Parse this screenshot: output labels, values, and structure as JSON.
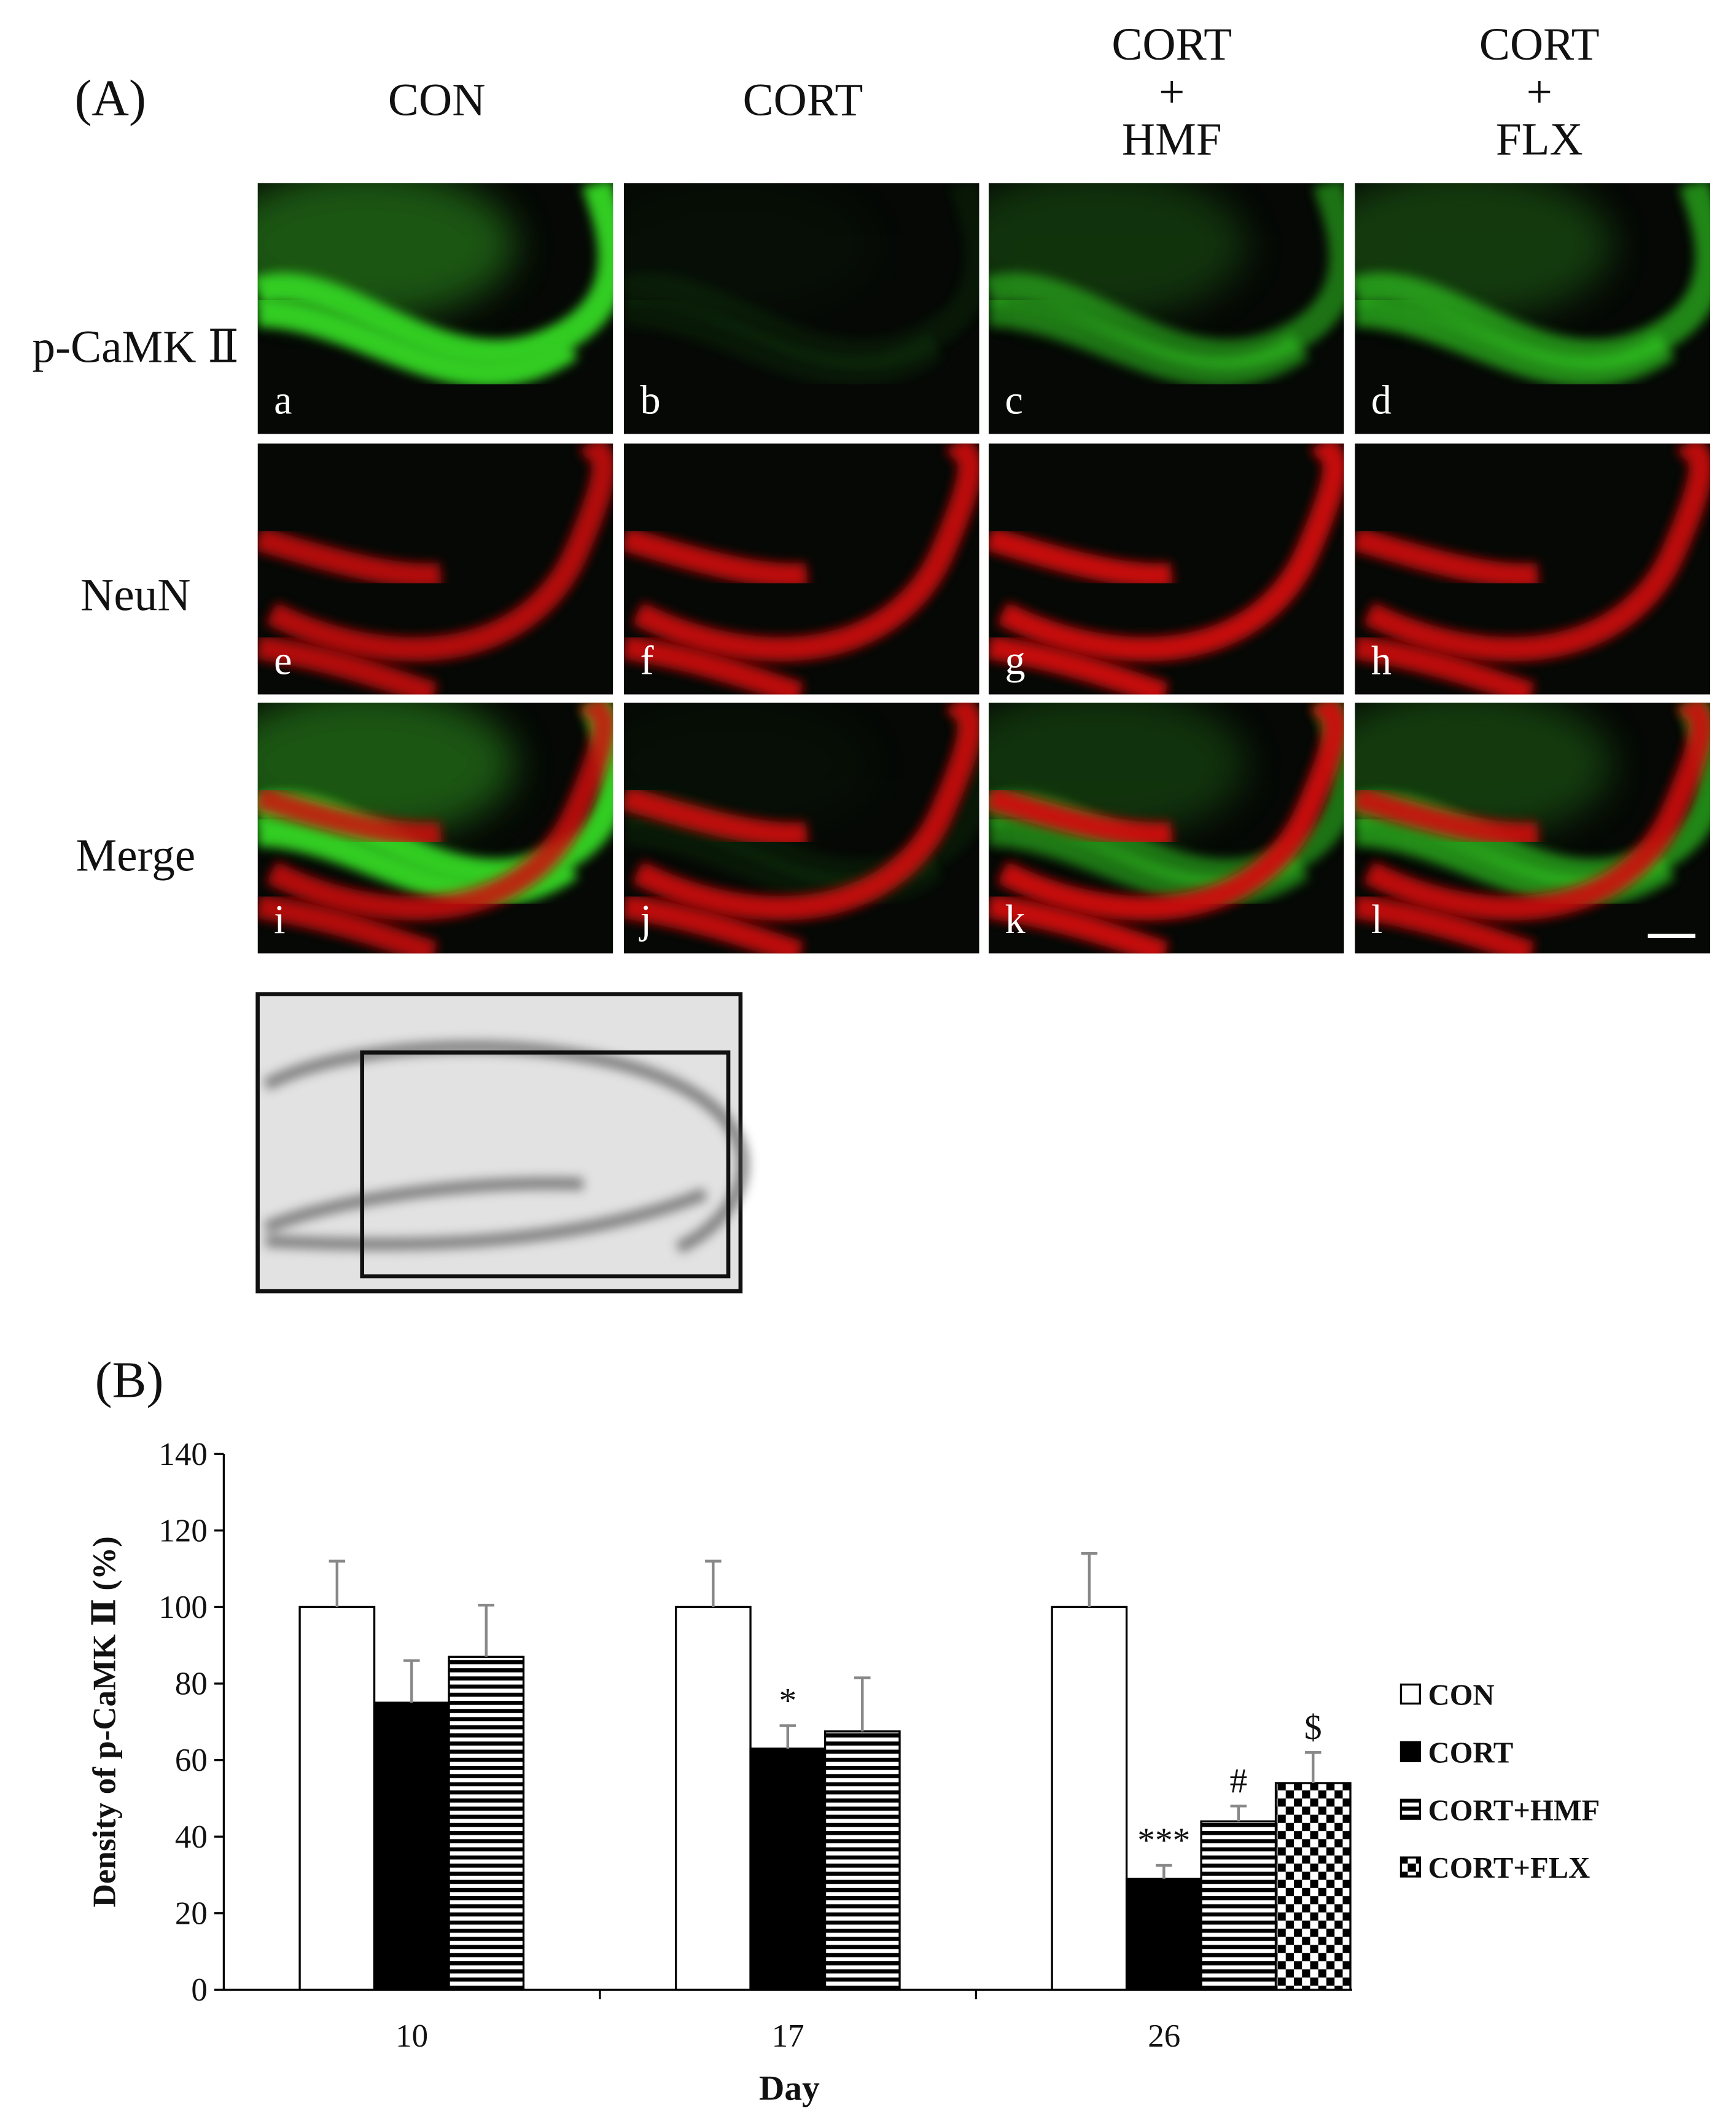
{
  "panel_a": {
    "label": "(A)",
    "column_headers": [
      [
        "CON"
      ],
      [
        "CORT"
      ],
      [
        "CORT",
        "+",
        "HMF"
      ],
      [
        "CORT",
        "+",
        "FLX"
      ]
    ],
    "row_labels": [
      "p-CaMK Ⅱ",
      "NeuN",
      "Merge"
    ],
    "image_letters": [
      [
        "a",
        "b",
        "c",
        "d"
      ],
      [
        "e",
        "f",
        "g",
        "h"
      ],
      [
        "i",
        "j",
        "k",
        "l"
      ]
    ]
  },
  "chart_data": {
    "type": "bar",
    "label": "(B)",
    "x_label": "Day",
    "y_label": "Density of p-CaMK Ⅱ (%)",
    "categories": [
      "10",
      "17",
      "26"
    ],
    "ylim": [
      0,
      140
    ],
    "yticks": [
      0,
      20,
      40,
      60,
      80,
      100,
      120,
      140
    ],
    "legend": "right",
    "series": [
      {
        "name": "CON",
        "color": "#ffffff",
        "pattern": "solid",
        "values": [
          100,
          100,
          100
        ],
        "errors": [
          12,
          12,
          14
        ],
        "annotations": [
          null,
          null,
          null
        ]
      },
      {
        "name": "CORT",
        "color": "#000000",
        "pattern": "solid",
        "values": [
          75,
          63,
          29
        ],
        "errors": [
          11,
          6,
          3.5
        ],
        "annotations": [
          null,
          "*",
          "***"
        ]
      },
      {
        "name": "CORT+HMF",
        "color": "#000000",
        "pattern": "horizontal-lines",
        "values": [
          87,
          67.5,
          44
        ],
        "errors": [
          13.5,
          14,
          4
        ],
        "annotations": [
          null,
          null,
          "#"
        ]
      },
      {
        "name": "CORT+FLX",
        "color": "#000000",
        "pattern": "checker",
        "values": [
          null,
          null,
          54
        ],
        "errors": [
          null,
          null,
          8
        ],
        "annotations": [
          null,
          null,
          "$"
        ]
      }
    ]
  }
}
